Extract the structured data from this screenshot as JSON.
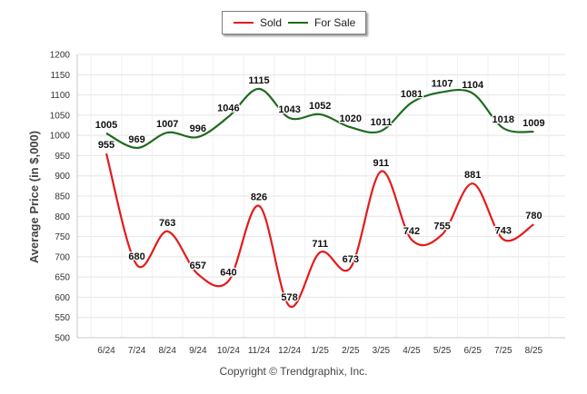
{
  "chart_data": {
    "type": "line",
    "categories": [
      "6/24",
      "7/24",
      "8/24",
      "9/24",
      "10/24",
      "11/24",
      "12/24",
      "1/25",
      "2/25",
      "3/25",
      "4/25",
      "5/25",
      "6/25",
      "7/25",
      "8/25"
    ],
    "series": [
      {
        "name": "Sold",
        "color": "#e31b1b",
        "values": [
          955,
          680,
          763,
          657,
          640,
          826,
          578,
          711,
          673,
          911,
          742,
          755,
          881,
          743,
          780
        ]
      },
      {
        "name": "For Sale",
        "color": "#1e6b1e",
        "values": [
          1005,
          969,
          1007,
          996,
          1046,
          1115,
          1043,
          1052,
          1020,
          1011,
          1081,
          1107,
          1104,
          1018,
          1009
        ]
      }
    ],
    "ylabel": "Average Price (in $,000)",
    "xlabel": "",
    "ylim": [
      500,
      1200
    ],
    "yticks": [
      "500",
      "550",
      "600",
      "650",
      "700",
      "750",
      "800",
      "850",
      "900",
      "950",
      "1000",
      "1050",
      "1100",
      "1150",
      "1200"
    ],
    "grid": true,
    "legend_position": "top-center"
  },
  "footer": {
    "credit": "Copyright © Trendgraphix, Inc."
  }
}
